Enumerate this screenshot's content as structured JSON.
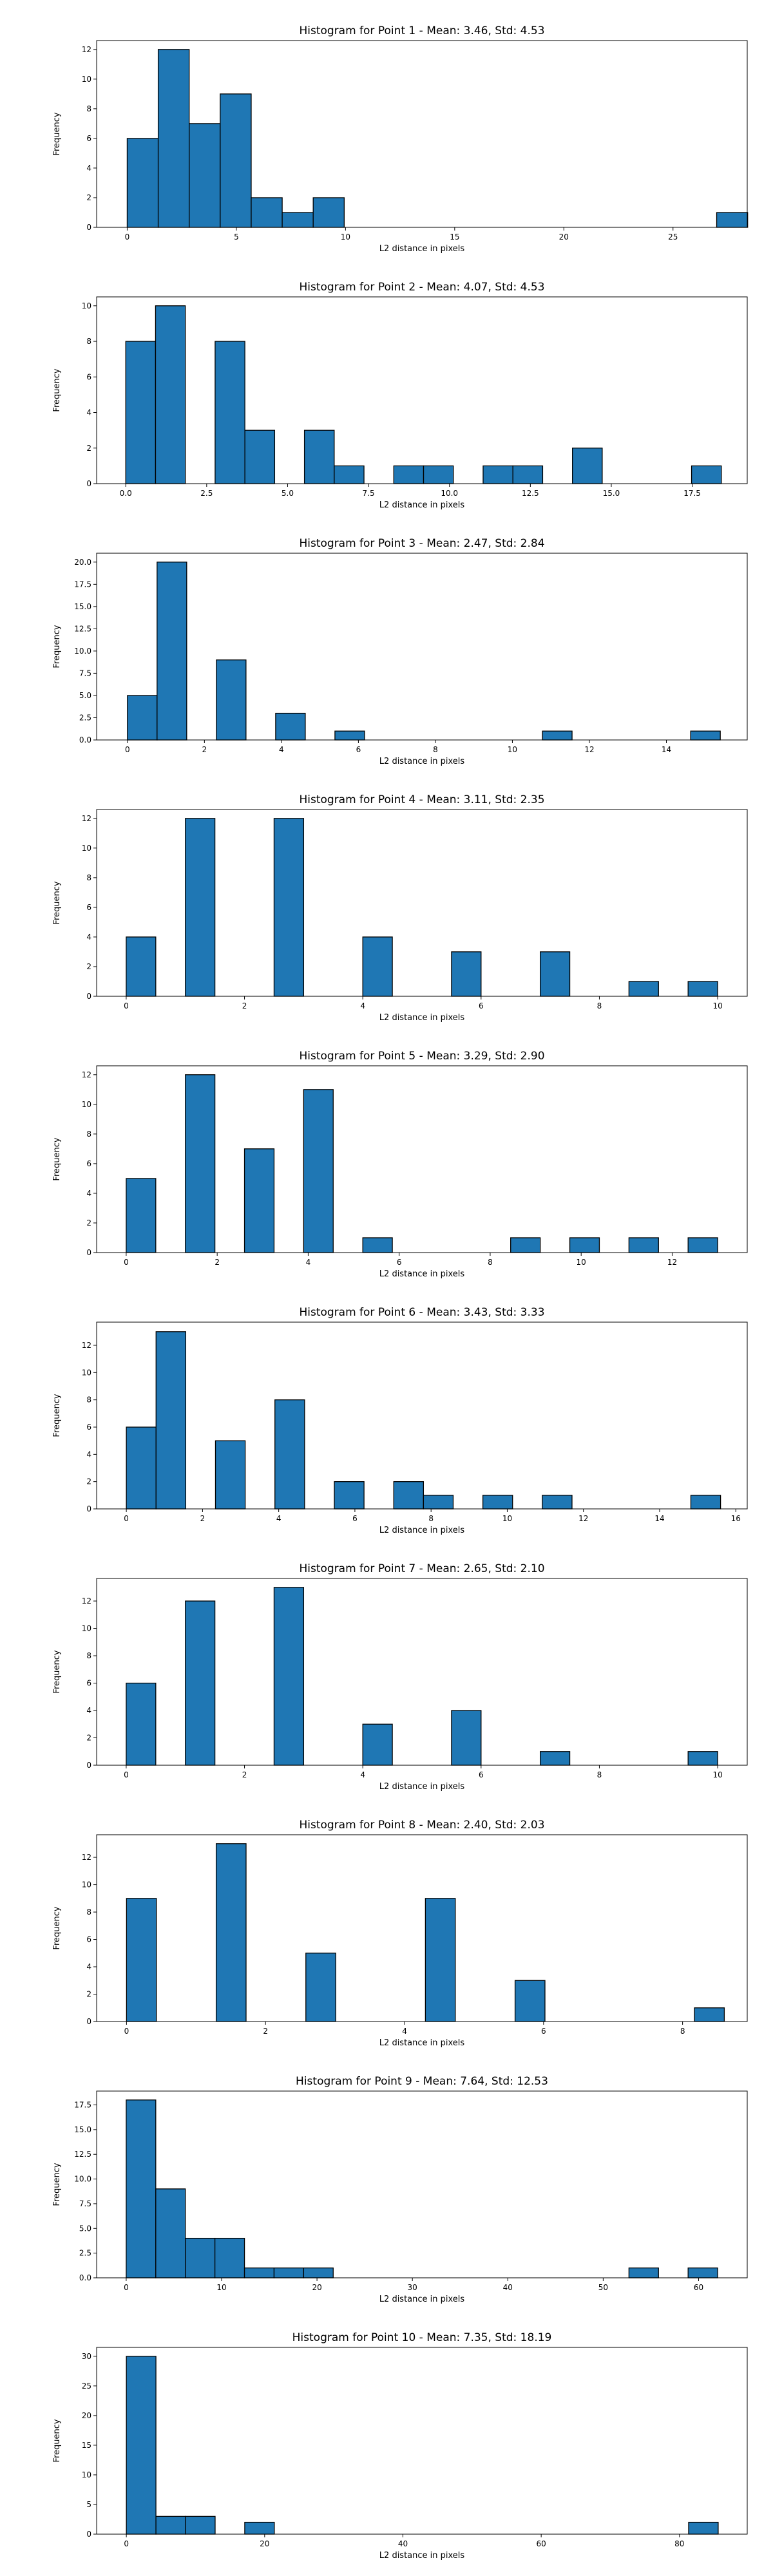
{
  "chart_data": [
    {
      "type": "bar",
      "title": "Histogram for Point 1 - Mean: 3.46, Std: 4.53",
      "xlabel": "L2 distance in pixels",
      "ylabel": "Frequency",
      "grid": false,
      "color": "#1f77b4",
      "edge_color": "#000000",
      "xlim": [
        -1.4,
        28.4
      ],
      "ylim": [
        0,
        12.6
      ],
      "xticks": [
        0,
        5,
        10,
        15,
        20,
        25
      ],
      "xtick_labels": [
        "0",
        "5",
        "10",
        "15",
        "20",
        "25"
      ],
      "yticks": [
        0,
        2,
        4,
        6,
        8,
        10,
        12
      ],
      "ytick_labels": [
        "0",
        "2",
        "4",
        "6",
        "8",
        "10",
        "12"
      ],
      "bins": [
        0,
        1.42,
        2.84,
        4.26,
        5.68,
        7.1,
        8.52,
        9.94,
        27.0,
        28.42
      ],
      "counts": [
        6,
        12,
        7,
        9,
        2,
        1,
        2,
        0,
        1
      ]
    },
    {
      "type": "bar",
      "title": "Histogram for Point 2 - Mean: 4.07, Std: 4.53",
      "xlabel": "L2 distance in pixels",
      "ylabel": "Frequency",
      "grid": false,
      "color": "#1f77b4",
      "edge_color": "#000000",
      "xlim": [
        -0.9,
        19.2
      ],
      "ylim": [
        0,
        10.5
      ],
      "xticks": [
        0,
        2.5,
        5,
        7.5,
        10,
        12.5,
        15,
        17.5
      ],
      "xtick_labels": [
        "0.0",
        "2.5",
        "5.0",
        "7.5",
        "10.0",
        "12.5",
        "15.0",
        "17.5"
      ],
      "yticks": [
        0,
        2,
        4,
        6,
        8,
        10
      ],
      "ytick_labels": [
        "0",
        "2",
        "4",
        "6",
        "8",
        "10"
      ],
      "bins": [
        0,
        0.92,
        1.84,
        2.76,
        3.68,
        4.6,
        5.52,
        6.44,
        7.36,
        8.28,
        9.2,
        10.12,
        11.04,
        11.96,
        12.88,
        13.8,
        14.72,
        15.64,
        16.56,
        17.48,
        18.4
      ],
      "counts": [
        8,
        10,
        0,
        8,
        3,
        0,
        3,
        1,
        0,
        1,
        1,
        0,
        1,
        1,
        0,
        2,
        0,
        0,
        0,
        1
      ]
    },
    {
      "type": "bar",
      "title": "Histogram for Point 3 - Mean: 2.47, Std: 2.84",
      "xlabel": "L2 distance in pixels",
      "ylabel": "Frequency",
      "grid": false,
      "color": "#1f77b4",
      "edge_color": "#000000",
      "xlim": [
        -0.8,
        16.1
      ],
      "ylim": [
        0,
        21
      ],
      "xticks": [
        0,
        2,
        4,
        6,
        8,
        10,
        12,
        14
      ],
      "xtick_labels": [
        "0",
        "2",
        "4",
        "6",
        "8",
        "10",
        "12",
        "14"
      ],
      "yticks": [
        0,
        2.5,
        5,
        7.5,
        10,
        12.5,
        15,
        17.5,
        20
      ],
      "ytick_labels": [
        "0.0",
        "2.5",
        "5.0",
        "7.5",
        "10.0",
        "12.5",
        "15.0",
        "17.5",
        "20.0"
      ],
      "bins": [
        0,
        0.77,
        1.54,
        2.31,
        3.08,
        3.85,
        4.62,
        5.39,
        6.16,
        10.78,
        11.55,
        14.63,
        15.4
      ],
      "counts": [
        5,
        20,
        0,
        9,
        0,
        3,
        0,
        1,
        0,
        1,
        0,
        1
      ]
    },
    {
      "type": "bar",
      "title": "Histogram for Point 4 - Mean: 3.11, Std: 2.35",
      "xlabel": "L2 distance in pixels",
      "ylabel": "Frequency",
      "grid": false,
      "color": "#1f77b4",
      "edge_color": "#000000",
      "xlim": [
        -0.5,
        10.5
      ],
      "ylim": [
        0,
        12.6
      ],
      "xticks": [
        0,
        2,
        4,
        6,
        8,
        10
      ],
      "xtick_labels": [
        "0",
        "2",
        "4",
        "6",
        "8",
        "10"
      ],
      "yticks": [
        0,
        2,
        4,
        6,
        8,
        10,
        12
      ],
      "ytick_labels": [
        "0",
        "2",
        "4",
        "6",
        "8",
        "10",
        "12"
      ],
      "bins": [
        0,
        0.5,
        1,
        1.5,
        2,
        2.5,
        3,
        3.5,
        4,
        4.5,
        5,
        5.5,
        6,
        6.5,
        7,
        7.5,
        8,
        8.5,
        9,
        9.5,
        10
      ],
      "counts": [
        4,
        0,
        12,
        0,
        0,
        12,
        0,
        0,
        4,
        0,
        0,
        3,
        0,
        0,
        3,
        0,
        0,
        1,
        0,
        1
      ]
    },
    {
      "type": "bar",
      "title": "Histogram for Point 5 - Mean: 3.29, Std: 2.90",
      "xlabel": "L2 distance in pixels",
      "ylabel": "Frequency",
      "grid": false,
      "color": "#1f77b4",
      "edge_color": "#000000",
      "xlim": [
        -0.65,
        13.65
      ],
      "ylim": [
        0,
        12.6
      ],
      "xticks": [
        0,
        2,
        4,
        6,
        8,
        10,
        12
      ],
      "xtick_labels": [
        "0",
        "2",
        "4",
        "6",
        "8",
        "10",
        "12"
      ],
      "yticks": [
        0,
        2,
        4,
        6,
        8,
        10,
        12
      ],
      "ytick_labels": [
        "0",
        "2",
        "4",
        "6",
        "8",
        "10",
        "12"
      ],
      "bins": [
        0,
        0.65,
        1.3,
        1.95,
        2.6,
        3.25,
        3.9,
        4.55,
        5.2,
        5.85,
        6.5,
        7.15,
        7.8,
        8.45,
        9.1,
        9.75,
        10.4,
        11.05,
        11.7,
        12.35,
        13.0
      ],
      "counts": [
        5,
        0,
        12,
        0,
        7,
        0,
        11,
        0,
        1,
        0,
        0,
        0,
        0,
        1,
        0,
        1,
        0,
        1,
        0,
        1
      ]
    },
    {
      "type": "bar",
      "title": "Histogram for Point 6 - Mean: 3.43, Std: 3.33",
      "xlabel": "L2 distance in pixels",
      "ylabel": "Frequency",
      "grid": false,
      "color": "#1f77b4",
      "edge_color": "#000000",
      "xlim": [
        -0.78,
        16.3
      ],
      "ylim": [
        0,
        13.7
      ],
      "xticks": [
        0,
        2,
        4,
        6,
        8,
        10,
        12,
        14,
        16
      ],
      "xtick_labels": [
        "0",
        "2",
        "4",
        "6",
        "8",
        "10",
        "12",
        "14",
        "16"
      ],
      "yticks": [
        0,
        2,
        4,
        6,
        8,
        10,
        12
      ],
      "ytick_labels": [
        "0",
        "2",
        "4",
        "6",
        "8",
        "10",
        "12"
      ],
      "bins": [
        0,
        0.78,
        1.56,
        2.34,
        3.12,
        3.9,
        4.68,
        5.46,
        6.24,
        7.02,
        7.8,
        8.58,
        9.36,
        10.14,
        10.92,
        11.7,
        12.48,
        14.82,
        15.6
      ],
      "counts": [
        6,
        13,
        0,
        5,
        0,
        8,
        0,
        2,
        0,
        2,
        1,
        0,
        1,
        0,
        1,
        0,
        0,
        1
      ]
    },
    {
      "type": "bar",
      "title": "Histogram for Point 7 - Mean: 2.65, Std: 2.10",
      "xlabel": "L2 distance in pixels",
      "ylabel": "Frequency",
      "grid": false,
      "color": "#1f77b4",
      "edge_color": "#000000",
      "xlim": [
        -0.5,
        10.5
      ],
      "ylim": [
        0,
        13.65
      ],
      "xticks": [
        0,
        2,
        4,
        6,
        8,
        10
      ],
      "xtick_labels": [
        "0",
        "2",
        "4",
        "6",
        "8",
        "10"
      ],
      "yticks": [
        0,
        2,
        4,
        6,
        8,
        10,
        12
      ],
      "ytick_labels": [
        "0",
        "2",
        "4",
        "6",
        "8",
        "10",
        "12"
      ],
      "bins": [
        0,
        0.5,
        1,
        1.5,
        2,
        2.5,
        3,
        3.5,
        4,
        4.5,
        5,
        5.5,
        6,
        6.5,
        7,
        7.5,
        8,
        8.5,
        9,
        9.5,
        10
      ],
      "counts": [
        6,
        0,
        12,
        0,
        0,
        13,
        0,
        0,
        3,
        0,
        0,
        4,
        0,
        0,
        1,
        0,
        0,
        0,
        0,
        1
      ]
    },
    {
      "type": "bar",
      "title": "Histogram for Point 8 - Mean: 2.40, Std: 2.03",
      "xlabel": "L2 distance in pixels",
      "ylabel": "Frequency",
      "grid": false,
      "color": "#1f77b4",
      "edge_color": "#000000",
      "xlim": [
        -0.43,
        8.93
      ],
      "ylim": [
        0,
        13.65
      ],
      "xticks": [
        0,
        2,
        4,
        6,
        8
      ],
      "xtick_labels": [
        "0",
        "2",
        "4",
        "6",
        "8"
      ],
      "yticks": [
        0,
        2,
        4,
        6,
        8,
        10,
        12
      ],
      "ytick_labels": [
        "0",
        "2",
        "4",
        "6",
        "8",
        "10",
        "12"
      ],
      "bins": [
        0,
        0.43,
        0.86,
        1.29,
        1.72,
        2.15,
        2.58,
        3.01,
        3.44,
        3.87,
        4.3,
        4.73,
        5.16,
        5.59,
        6.02,
        6.45,
        6.88,
        7.31,
        7.74,
        8.17,
        8.6
      ],
      "counts": [
        9,
        0,
        0,
        13,
        0,
        0,
        5,
        0,
        0,
        0,
        9,
        0,
        0,
        3,
        0,
        0,
        0,
        0,
        0,
        1
      ]
    },
    {
      "type": "bar",
      "title": "Histogram for Point 9 - Mean: 7.64, Std: 12.53",
      "xlabel": "L2 distance in pixels",
      "ylabel": "Frequency",
      "grid": false,
      "color": "#1f77b4",
      "edge_color": "#000000",
      "xlim": [
        -3.1,
        65.1
      ],
      "ylim": [
        0,
        18.9
      ],
      "xticks": [
        0,
        10,
        20,
        30,
        40,
        50,
        60
      ],
      "xtick_labels": [
        "0",
        "10",
        "20",
        "30",
        "40",
        "50",
        "60"
      ],
      "yticks": [
        0,
        2.5,
        5,
        7.5,
        10,
        12.5,
        15,
        17.5
      ],
      "ytick_labels": [
        "0.0",
        "2.5",
        "5.0",
        "7.5",
        "10.0",
        "12.5",
        "15.0",
        "17.5"
      ],
      "bins": [
        0,
        3.1,
        6.2,
        9.3,
        12.4,
        15.5,
        18.6,
        21.7,
        52.7,
        55.8,
        58.9,
        62.0
      ],
      "counts": [
        18,
        9,
        4,
        4,
        1,
        1,
        1,
        0,
        1,
        0,
        1
      ]
    },
    {
      "type": "bar",
      "title": "Histogram for Point 10 - Mean: 7.35, Std: 18.19",
      "xlabel": "L2 distance in pixels",
      "ylabel": "Frequency",
      "grid": false,
      "color": "#1f77b4",
      "edge_color": "#000000",
      "xlim": [
        -4.3,
        89.8
      ],
      "ylim": [
        0,
        31.5
      ],
      "xticks": [
        0,
        20,
        40,
        60,
        80
      ],
      "xtick_labels": [
        "0",
        "20",
        "40",
        "60",
        "80"
      ],
      "yticks": [
        0,
        5,
        10,
        15,
        20,
        25,
        30
      ],
      "ytick_labels": [
        "0",
        "5",
        "10",
        "15",
        "20",
        "25",
        "30"
      ],
      "bins": [
        0,
        4.28,
        8.56,
        12.84,
        17.12,
        21.4,
        81.32,
        85.6
      ],
      "counts": [
        30,
        3,
        3,
        0,
        2,
        0,
        2
      ]
    }
  ]
}
